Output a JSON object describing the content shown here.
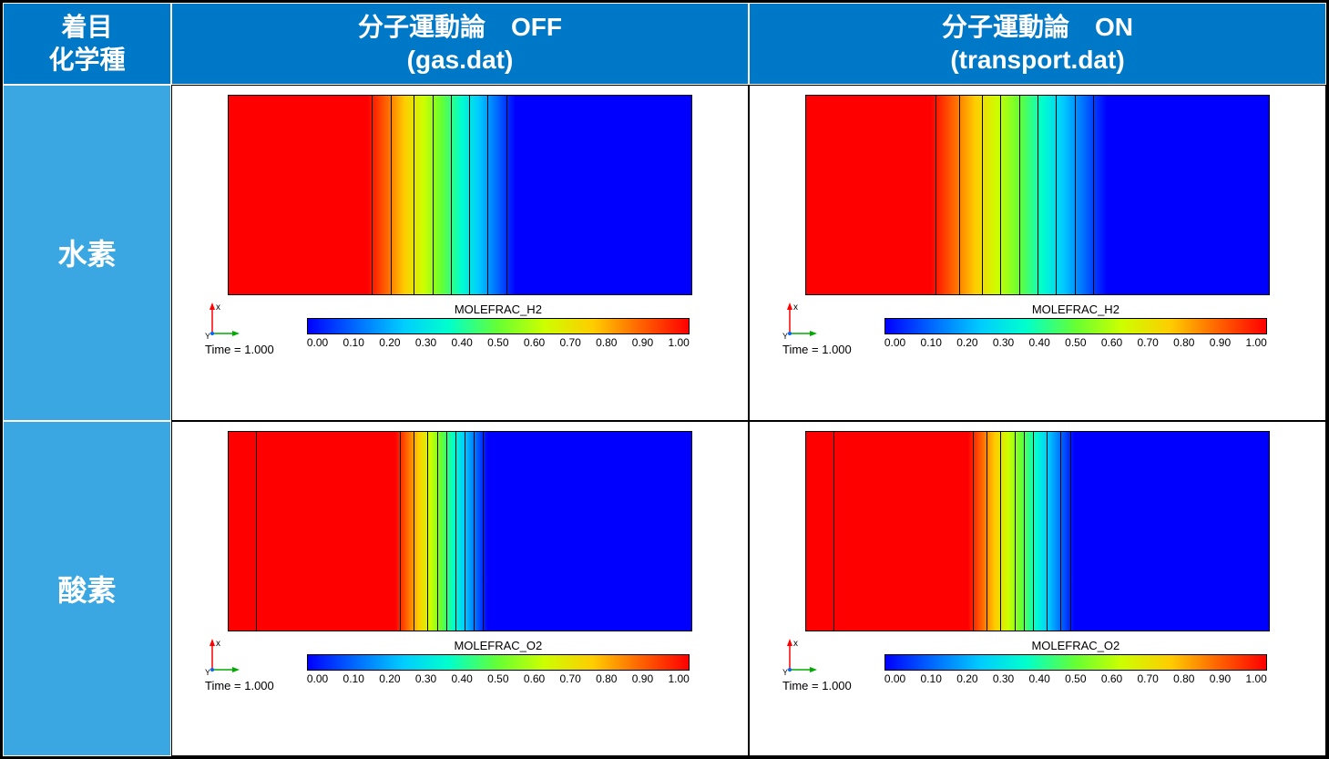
{
  "colormap": {
    "stops": [
      {
        "pct": 0,
        "hex": "#0000ff"
      },
      {
        "pct": 12,
        "hex": "#0066ff"
      },
      {
        "pct": 25,
        "hex": "#00ccff"
      },
      {
        "pct": 37,
        "hex": "#00ffcc"
      },
      {
        "pct": 50,
        "hex": "#66ff33"
      },
      {
        "pct": 62,
        "hex": "#ccff00"
      },
      {
        "pct": 75,
        "hex": "#ffcc00"
      },
      {
        "pct": 87,
        "hex": "#ff6600"
      },
      {
        "pct": 100,
        "hex": "#ff0000"
      }
    ],
    "tick_labels": [
      "0.00",
      "0.10",
      "0.20",
      "0.30",
      "0.40",
      "0.50",
      "0.60",
      "0.70",
      "0.80",
      "0.90",
      "1.00"
    ],
    "range": [
      0.0,
      1.0
    ]
  },
  "header": {
    "corner_line1": "着目",
    "corner_line2": "化学種",
    "col_off_line1": "分子運動論　OFF",
    "col_off_line2": "(gas.dat)",
    "col_on_line1": "分子運動論　ON",
    "col_on_line2": "(transport.dat)"
  },
  "rows": [
    {
      "label": "水素",
      "species_var": "MOLEFRAC_H2",
      "off": {
        "time_label": "Time = 1.000",
        "transition_start_pct": 30,
        "transition_end_pct": 62,
        "contour_pcts": [
          31,
          35,
          40,
          44,
          48,
          52,
          56,
          60
        ]
      },
      "on": {
        "time_label": "Time = 1.000",
        "transition_start_pct": 27,
        "transition_end_pct": 65,
        "contour_pcts": [
          28,
          33,
          38,
          42,
          46,
          50,
          54,
          58,
          62
        ]
      }
    },
    {
      "label": "酸素",
      "species_var": "MOLEFRAC_O2",
      "off": {
        "time_label": "Time = 1.000",
        "transition_start_pct": 36,
        "transition_end_pct": 56,
        "contour_pcts": [
          6,
          37,
          40,
          43,
          45,
          47,
          49,
          51,
          53,
          55
        ]
      },
      "on": {
        "time_label": "Time = 1.000",
        "transition_start_pct": 35,
        "transition_end_pct": 58,
        "contour_pcts": [
          6,
          36,
          39,
          42,
          45,
          47,
          49,
          52,
          55,
          57
        ]
      }
    }
  ],
  "axis": {
    "x_label": "x",
    "y_label": "Y",
    "x_color": "#ff0000",
    "y_color": "#00aa00"
  }
}
